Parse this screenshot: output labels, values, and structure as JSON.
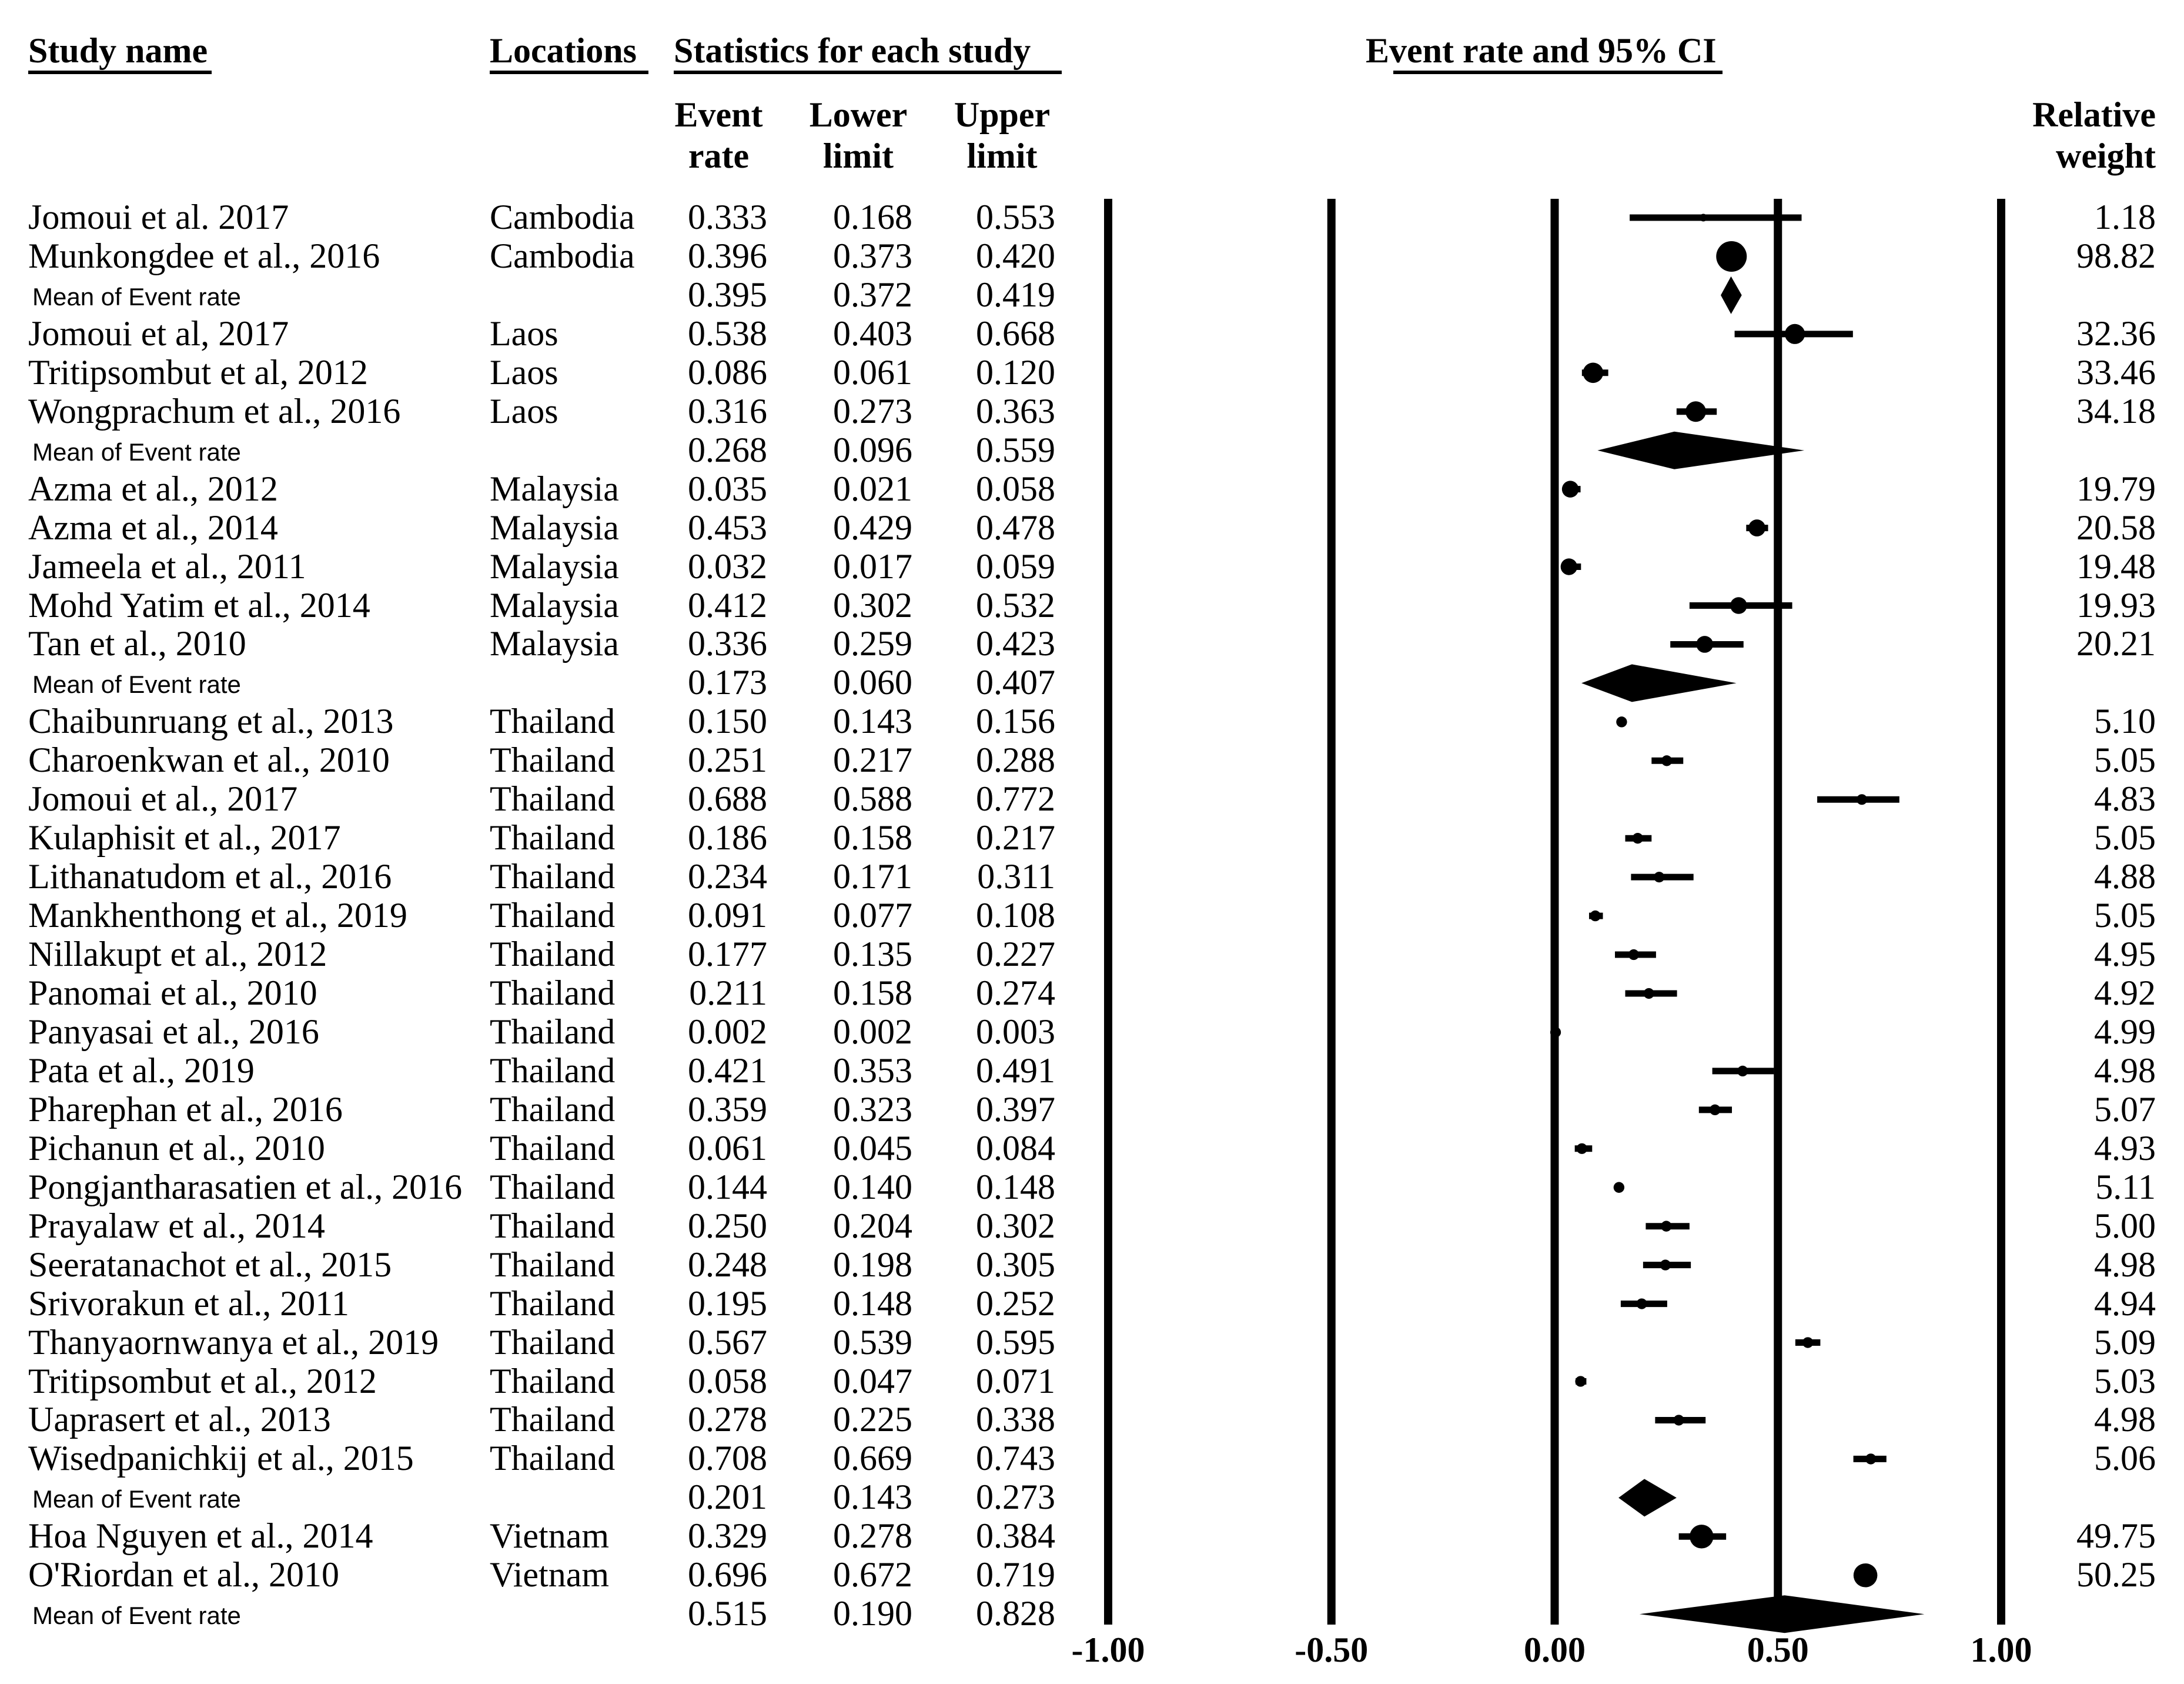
{
  "headers": {
    "study_name": "Study name",
    "locations": "Locations",
    "statistics": "Statistics for each study",
    "event_rate_line1": "Event",
    "event_rate_line2": "rate",
    "lower_line1": "Lower",
    "lower_line2": "limit",
    "upper_line1": "Upper",
    "upper_line2": "limit",
    "plot_title": "Event rate and 95% CI",
    "weight_line1": "Relative",
    "weight_line2": "weight"
  },
  "chart_data": {
    "type": "forest",
    "title": "Event rate and 95% CI",
    "xlim": [
      -1.0,
      1.0
    ],
    "xticks": [
      -1.0,
      -0.5,
      0.0,
      0.5,
      1.0
    ],
    "xtick_labels": [
      "-1.00",
      "-0.50",
      "0.00",
      "0.50",
      "1.00"
    ],
    "rows": [
      {
        "kind": "study",
        "name": "Jomoui et al. 2017",
        "location": "Cambodia",
        "rate": "0.333",
        "lower": "0.168",
        "upper": "0.553",
        "weight": "1.18"
      },
      {
        "kind": "study",
        "name": "Munkongdee et al., 2016",
        "location": "Cambodia",
        "rate": "0.396",
        "lower": "0.373",
        "upper": "0.420",
        "weight": "98.82"
      },
      {
        "kind": "mean",
        "name": "Mean of Event rate",
        "location": "",
        "rate": "0.395",
        "lower": "0.372",
        "upper": "0.419",
        "weight": ""
      },
      {
        "kind": "study",
        "name": "Jomoui et al, 2017",
        "location": "Laos",
        "rate": "0.538",
        "lower": "0.403",
        "upper": "0.668",
        "weight": "32.36"
      },
      {
        "kind": "study",
        "name": "Tritipsombut et al, 2012",
        "location": "Laos",
        "rate": "0.086",
        "lower": "0.061",
        "upper": "0.120",
        "weight": "33.46"
      },
      {
        "kind": "study",
        "name": "Wongprachum et al., 2016",
        "location": "Laos",
        "rate": "0.316",
        "lower": "0.273",
        "upper": "0.363",
        "weight": "34.18"
      },
      {
        "kind": "mean",
        "name": "Mean of Event rate",
        "location": "",
        "rate": "0.268",
        "lower": "0.096",
        "upper": "0.559",
        "weight": ""
      },
      {
        "kind": "study",
        "name": "Azma et al., 2012",
        "location": "Malaysia",
        "rate": "0.035",
        "lower": "0.021",
        "upper": "0.058",
        "weight": "19.79"
      },
      {
        "kind": "study",
        "name": "Azma et al., 2014",
        "location": "Malaysia",
        "rate": "0.453",
        "lower": "0.429",
        "upper": "0.478",
        "weight": "20.58"
      },
      {
        "kind": "study",
        "name": "Jameela et al., 2011",
        "location": "Malaysia",
        "rate": "0.032",
        "lower": "0.017",
        "upper": "0.059",
        "weight": "19.48"
      },
      {
        "kind": "study",
        "name": "Mohd Yatim et al., 2014",
        "location": "Malaysia",
        "rate": "0.412",
        "lower": "0.302",
        "upper": "0.532",
        "weight": "19.93"
      },
      {
        "kind": "study",
        "name": "Tan et al., 2010",
        "location": "Malaysia",
        "rate": "0.336",
        "lower": "0.259",
        "upper": "0.423",
        "weight": "20.21"
      },
      {
        "kind": "mean",
        "name": "Mean of Event rate",
        "location": "",
        "rate": "0.173",
        "lower": "0.060",
        "upper": "0.407",
        "weight": ""
      },
      {
        "kind": "study",
        "name": "Chaibunruang et al., 2013",
        "location": "Thailand",
        "rate": "0.150",
        "lower": "0.143",
        "upper": "0.156",
        "weight": "5.10"
      },
      {
        "kind": "study",
        "name": "Charoenkwan et al., 2010",
        "location": "Thailand",
        "rate": "0.251",
        "lower": "0.217",
        "upper": "0.288",
        "weight": "5.05"
      },
      {
        "kind": "study",
        "name": "Jomoui et al., 2017",
        "location": "Thailand",
        "rate": "0.688",
        "lower": "0.588",
        "upper": "0.772",
        "weight": "4.83"
      },
      {
        "kind": "study",
        "name": "Kulaphisit et al., 2017",
        "location": "Thailand",
        "rate": "0.186",
        "lower": "0.158",
        "upper": "0.217",
        "weight": "5.05"
      },
      {
        "kind": "study",
        "name": "Lithanatudom et al., 2016",
        "location": "Thailand",
        "rate": "0.234",
        "lower": "0.171",
        "upper": "0.311",
        "weight": "4.88"
      },
      {
        "kind": "study",
        "name": "Mankhenthong et al., 2019",
        "location": "Thailand",
        "rate": "0.091",
        "lower": "0.077",
        "upper": "0.108",
        "weight": "5.05"
      },
      {
        "kind": "study",
        "name": "Nillakupt et al., 2012",
        "location": "Thailand",
        "rate": "0.177",
        "lower": "0.135",
        "upper": "0.227",
        "weight": "4.95"
      },
      {
        "kind": "study",
        "name": "Panomai et al., 2010",
        "location": "Thailand",
        "rate": "0.211",
        "lower": "0.158",
        "upper": "0.274",
        "weight": "4.92"
      },
      {
        "kind": "study",
        "name": "Panyasai et al., 2016",
        "location": "Thailand",
        "rate": "0.002",
        "lower": "0.002",
        "upper": "0.003",
        "weight": "4.99"
      },
      {
        "kind": "study",
        "name": "Pata et al., 2019",
        "location": "Thailand",
        "rate": "0.421",
        "lower": "0.353",
        "upper": "0.491",
        "weight": "4.98"
      },
      {
        "kind": "study",
        "name": "Pharephan et al., 2016",
        "location": "Thailand",
        "rate": "0.359",
        "lower": "0.323",
        "upper": "0.397",
        "weight": "5.07"
      },
      {
        "kind": "study",
        "name": "Pichanun et al., 2010",
        "location": "Thailand",
        "rate": "0.061",
        "lower": "0.045",
        "upper": "0.084",
        "weight": "4.93"
      },
      {
        "kind": "study",
        "name": "Pongjantharasatien et al., 2016",
        "location": "Thailand",
        "rate": "0.144",
        "lower": "0.140",
        "upper": "0.148",
        "weight": "5.11"
      },
      {
        "kind": "study",
        "name": "Prayalaw et al., 2014",
        "location": "Thailand",
        "rate": "0.250",
        "lower": "0.204",
        "upper": "0.302",
        "weight": "5.00"
      },
      {
        "kind": "study",
        "name": "Seeratanachot et al., 2015",
        "location": "Thailand",
        "rate": "0.248",
        "lower": "0.198",
        "upper": "0.305",
        "weight": "4.98"
      },
      {
        "kind": "study",
        "name": "Srivorakun et al., 2011",
        "location": "Thailand",
        "rate": "0.195",
        "lower": "0.148",
        "upper": "0.252",
        "weight": "4.94"
      },
      {
        "kind": "study",
        "name": "Thanyaornwanya et al., 2019",
        "location": "Thailand",
        "rate": "0.567",
        "lower": "0.539",
        "upper": "0.595",
        "weight": "5.09"
      },
      {
        "kind": "study",
        "name": "Tritipsombut et al., 2012",
        "location": "Thailand",
        "rate": "0.058",
        "lower": "0.047",
        "upper": "0.071",
        "weight": "5.03"
      },
      {
        "kind": "study",
        "name": "Uaprasert et al., 2013",
        "location": "Thailand",
        "rate": "0.278",
        "lower": "0.225",
        "upper": "0.338",
        "weight": "4.98"
      },
      {
        "kind": "study",
        "name": "Wisedpanichkij et al., 2015",
        "location": "Thailand",
        "rate": "0.708",
        "lower": "0.669",
        "upper": "0.743",
        "weight": "5.06"
      },
      {
        "kind": "mean",
        "name": "Mean of Event rate",
        "location": "",
        "rate": "0.201",
        "lower": "0.143",
        "upper": "0.273",
        "weight": ""
      },
      {
        "kind": "study",
        "name": "Hoa Nguyen et al., 2014",
        "location": "Vietnam",
        "rate": "0.329",
        "lower": "0.278",
        "upper": "0.384",
        "weight": "49.75"
      },
      {
        "kind": "study",
        "name": "O'Riordan et al., 2010",
        "location": "Vietnam",
        "rate": "0.696",
        "lower": "0.672",
        "upper": "0.719",
        "weight": "50.25"
      },
      {
        "kind": "mean",
        "name": "Mean of Event rate",
        "location": "",
        "rate": "0.515",
        "lower": "0.190",
        "upper": "0.828",
        "weight": ""
      }
    ]
  }
}
